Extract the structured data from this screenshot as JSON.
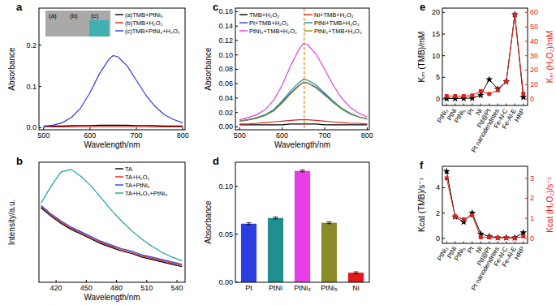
{
  "chart_data": [
    {
      "type": "line",
      "title": "a",
      "x": [
        500,
        520,
        540,
        560,
        580,
        600,
        620,
        640,
        650,
        660,
        680,
        700,
        720,
        740,
        760,
        780,
        800
      ],
      "xlim": [
        490,
        805
      ],
      "xticks": [
        500,
        600,
        700,
        800
      ],
      "ylim": [
        -0.005,
        0.29
      ],
      "yticks": [
        {
          "value": 0,
          "label": "0.0"
        },
        {
          "value": 0.1,
          "label": "0.1"
        },
        {
          "value": 0.2,
          "label": "0.2"
        }
      ],
      "x_label": "Wavelength/nm",
      "y_label": "Absorbance",
      "legend": "upper right",
      "annotations": [
        "(a)",
        "(b)",
        "(c)"
      ],
      "series": [
        {
          "name": "(a)TMB+PtNi₃",
          "color": "#000000",
          "values": [
            0.004,
            0.004,
            0.004,
            0.005,
            0.005,
            0.005,
            0.006,
            0.006,
            0.006,
            0.006,
            0.006,
            0.005,
            0.005,
            0.005,
            0.004,
            0.004,
            0.004
          ]
        },
        {
          "name": "(b)TMB+H₂O₂",
          "color": "#e0201a",
          "values": [
            0.002,
            0.002,
            0.002,
            0.002,
            0.003,
            0.003,
            0.003,
            0.003,
            0.003,
            0.003,
            0.003,
            0.003,
            0.003,
            0.002,
            0.002,
            0.002,
            0.002
          ]
        },
        {
          "name": "(c)TMB+PtNi₃+H₂O₂",
          "color": "#2a3ee0",
          "values": [
            0.003,
            0.006,
            0.012,
            0.025,
            0.048,
            0.085,
            0.13,
            0.165,
            0.175,
            0.172,
            0.15,
            0.115,
            0.08,
            0.052,
            0.032,
            0.02,
            0.012
          ]
        }
      ]
    },
    {
      "type": "line",
      "title": "b",
      "x": [
        405,
        415,
        425,
        435,
        445,
        455,
        465,
        475,
        485,
        495,
        505,
        515,
        525,
        535,
        545
      ],
      "xlim": [
        403,
        548
      ],
      "xticks": [
        420,
        450,
        480,
        510,
        540
      ],
      "ylim": [
        0,
        100
      ],
      "tick_labels": "x",
      "x_label": "Wavelength/nm",
      "y_label": "Intensity/a.u.",
      "legend": "upper right",
      "series": [
        {
          "name": "TA",
          "color": "#000000",
          "values": [
            62,
            55,
            49,
            44,
            40,
            36,
            32,
            29,
            26,
            24,
            21,
            19,
            17,
            15,
            13
          ]
        },
        {
          "name": "TA+H₂O₂",
          "color": "#e0201a",
          "values": [
            63,
            56,
            50,
            45,
            41,
            37,
            33,
            30,
            27,
            25,
            22,
            20,
            18,
            16,
            14
          ]
        },
        {
          "name": "TA+PtNi₃",
          "color": "#2a3ee0",
          "values": [
            64,
            57,
            51,
            46,
            42,
            38,
            34,
            31,
            28,
            26,
            23,
            21,
            19,
            17,
            15
          ]
        },
        {
          "name": "TA+H₂O₂+PtNi₃",
          "color": "#1aa3a0",
          "values": [
            66,
            80,
            92,
            94,
            88,
            80,
            70,
            60,
            51,
            43,
            36,
            30,
            25,
            21,
            18
          ]
        }
      ]
    },
    {
      "type": "line",
      "title": "c",
      "x": [
        500,
        520,
        540,
        560,
        580,
        600,
        620,
        640,
        650,
        660,
        680,
        700,
        720,
        740,
        760,
        780,
        800
      ],
      "xlim": [
        490,
        805
      ],
      "xticks": [
        500,
        600,
        700,
        800
      ],
      "ylim": [
        -0.004,
        0.165
      ],
      "yticks": [
        {
          "value": 0,
          "label": "0.00"
        },
        {
          "value": 0.02,
          "label": "0.02"
        },
        {
          "value": 0.04,
          "label": "0.04"
        },
        {
          "value": 0.06,
          "label": "0.06"
        },
        {
          "value": 0.08,
          "label": "0.08"
        },
        {
          "value": 0.1,
          "label": "0.10"
        },
        {
          "value": 0.12,
          "label": "0.12"
        },
        {
          "value": 0.14,
          "label": "0.14"
        },
        {
          "value": 0.16,
          "label": "0.16"
        }
      ],
      "x_label": "Wavelength/nm",
      "y_label": "Absorbance",
      "legend": "upper left",
      "reference_x": 652,
      "series": [
        {
          "name": "TMB+H₂O₂",
          "color": "#000000",
          "values": [
            0.003,
            0.003,
            0.003,
            0.003,
            0.003,
            0.003,
            0.004,
            0.004,
            0.004,
            0.004,
            0.004,
            0.003,
            0.003,
            0.003,
            0.003,
            0.003,
            0.003
          ]
        },
        {
          "name": "Pt+TMB+H₂O₂",
          "color": "#2a3ee0",
          "values": [
            0.008,
            0.01,
            0.012,
            0.016,
            0.023,
            0.034,
            0.047,
            0.058,
            0.062,
            0.061,
            0.055,
            0.045,
            0.034,
            0.025,
            0.018,
            0.014,
            0.011
          ]
        },
        {
          "name": "PtNi₃+TMB+H₂O₂",
          "color": "#e040e0",
          "values": [
            0.01,
            0.013,
            0.017,
            0.024,
            0.037,
            0.058,
            0.085,
            0.108,
            0.116,
            0.114,
            0.101,
            0.08,
            0.058,
            0.04,
            0.027,
            0.019,
            0.014
          ]
        },
        {
          "name": "Ni+TMB+H₂O₂",
          "color": "#e0201a",
          "values": [
            0.004,
            0.004,
            0.005,
            0.006,
            0.007,
            0.008,
            0.009,
            0.01,
            0.01,
            0.01,
            0.009,
            0.008,
            0.007,
            0.006,
            0.005,
            0.005,
            0.004
          ]
        },
        {
          "name": "PtNi+TMB+H₂O₂",
          "color": "#1f8f8f",
          "values": [
            0.008,
            0.01,
            0.013,
            0.017,
            0.024,
            0.036,
            0.05,
            0.062,
            0.066,
            0.065,
            0.058,
            0.047,
            0.036,
            0.026,
            0.019,
            0.014,
            0.011
          ]
        },
        {
          "name": "PtNi₅+TMB+H₂O₂",
          "color": "#8b8b2a",
          "values": [
            0.008,
            0.01,
            0.012,
            0.016,
            0.022,
            0.033,
            0.046,
            0.057,
            0.062,
            0.061,
            0.054,
            0.044,
            0.034,
            0.025,
            0.018,
            0.014,
            0.011
          ]
        }
      ]
    },
    {
      "type": "bar",
      "title": "d",
      "categories": [
        "Pt",
        "PtNi",
        "PtNi₃",
        "PtNi₅",
        "Ni"
      ],
      "values": [
        0.061,
        0.067,
        0.116,
        0.062,
        0.01
      ],
      "errors": [
        0.001,
        0.001,
        0.001,
        0.001,
        0.001
      ],
      "colors": [
        "#2a3ee0",
        "#1f8f8f",
        "#e83ee8",
        "#8b8b2a",
        "#e01a1a"
      ],
      "ylim": [
        0,
        0.125
      ],
      "yticks": [
        {
          "value": 0,
          "label": "0.00"
        },
        {
          "value": 0.05,
          "label": "0.05"
        },
        {
          "value": 0.1,
          "label": "0.10"
        }
      ],
      "y_label": "Absorbance"
    },
    {
      "type": "line",
      "title": "e",
      "categories": [
        "PtNi₃",
        "PtNi",
        "PtNi₅",
        "Pt",
        "Ni",
        "Pd@Pt",
        "Pt nanodendrites",
        "Fe-N-C",
        "Fe-Al-E",
        "HRP"
      ],
      "ylim": [
        -1.5,
        21
      ],
      "yticks": [
        0,
        5,
        10,
        15,
        20
      ],
      "y2lim": [
        -4.5,
        63
      ],
      "y2ticks": [
        0,
        10,
        20,
        30,
        40,
        50,
        60
      ],
      "y_label": "Kₘ (TMB)/mM",
      "y2_label": "Kₘ (H₂O₂)/mM",
      "series": [
        {
          "color": "#000000",
          "marker": "star",
          "values": [
            0.1,
            0.1,
            0.15,
            0.2,
            0.9,
            4.5,
            2.3,
            4.0,
            19.5,
            0.4
          ]
        },
        {
          "color": "#e0201a",
          "marker": "square",
          "axis": "y2",
          "values": [
            2,
            2,
            2,
            2.5,
            5.5,
            3.5,
            6,
            12,
            58.5,
            3.7
          ]
        }
      ]
    },
    {
      "type": "line",
      "title": "f",
      "categories": [
        "PtNi₃",
        "PtNi",
        "PtNi₅",
        "Pt",
        "Ni",
        "Pd@Pt",
        "Pt nanodendrites",
        "Fe-N-C",
        "Fe-Al-E",
        "HRP"
      ],
      "ylim": [
        -0.4,
        5.7
      ],
      "yticks": [
        0,
        2,
        4
      ],
      "y2lim": [
        -0.25,
        3.6
      ],
      "y2ticks": [
        0,
        1,
        2,
        3
      ],
      "y_label": "Kcat (TMB)/s⁻¹",
      "y2_label": "Kcat (H₂O₂)/s⁻¹",
      "series": [
        {
          "color": "#000000",
          "marker": "star",
          "values": [
            5.3,
            1.7,
            1.3,
            2.0,
            0.35,
            0.15,
            0.05,
            0.05,
            0.05,
            0.45
          ]
        },
        {
          "color": "#e0201a",
          "marker": "square",
          "axis": "y2",
          "values": [
            3.0,
            1.1,
            0.95,
            1.15,
            0.05,
            0.05,
            0.02,
            0.02,
            0.0,
            0.1
          ]
        }
      ]
    }
  ]
}
